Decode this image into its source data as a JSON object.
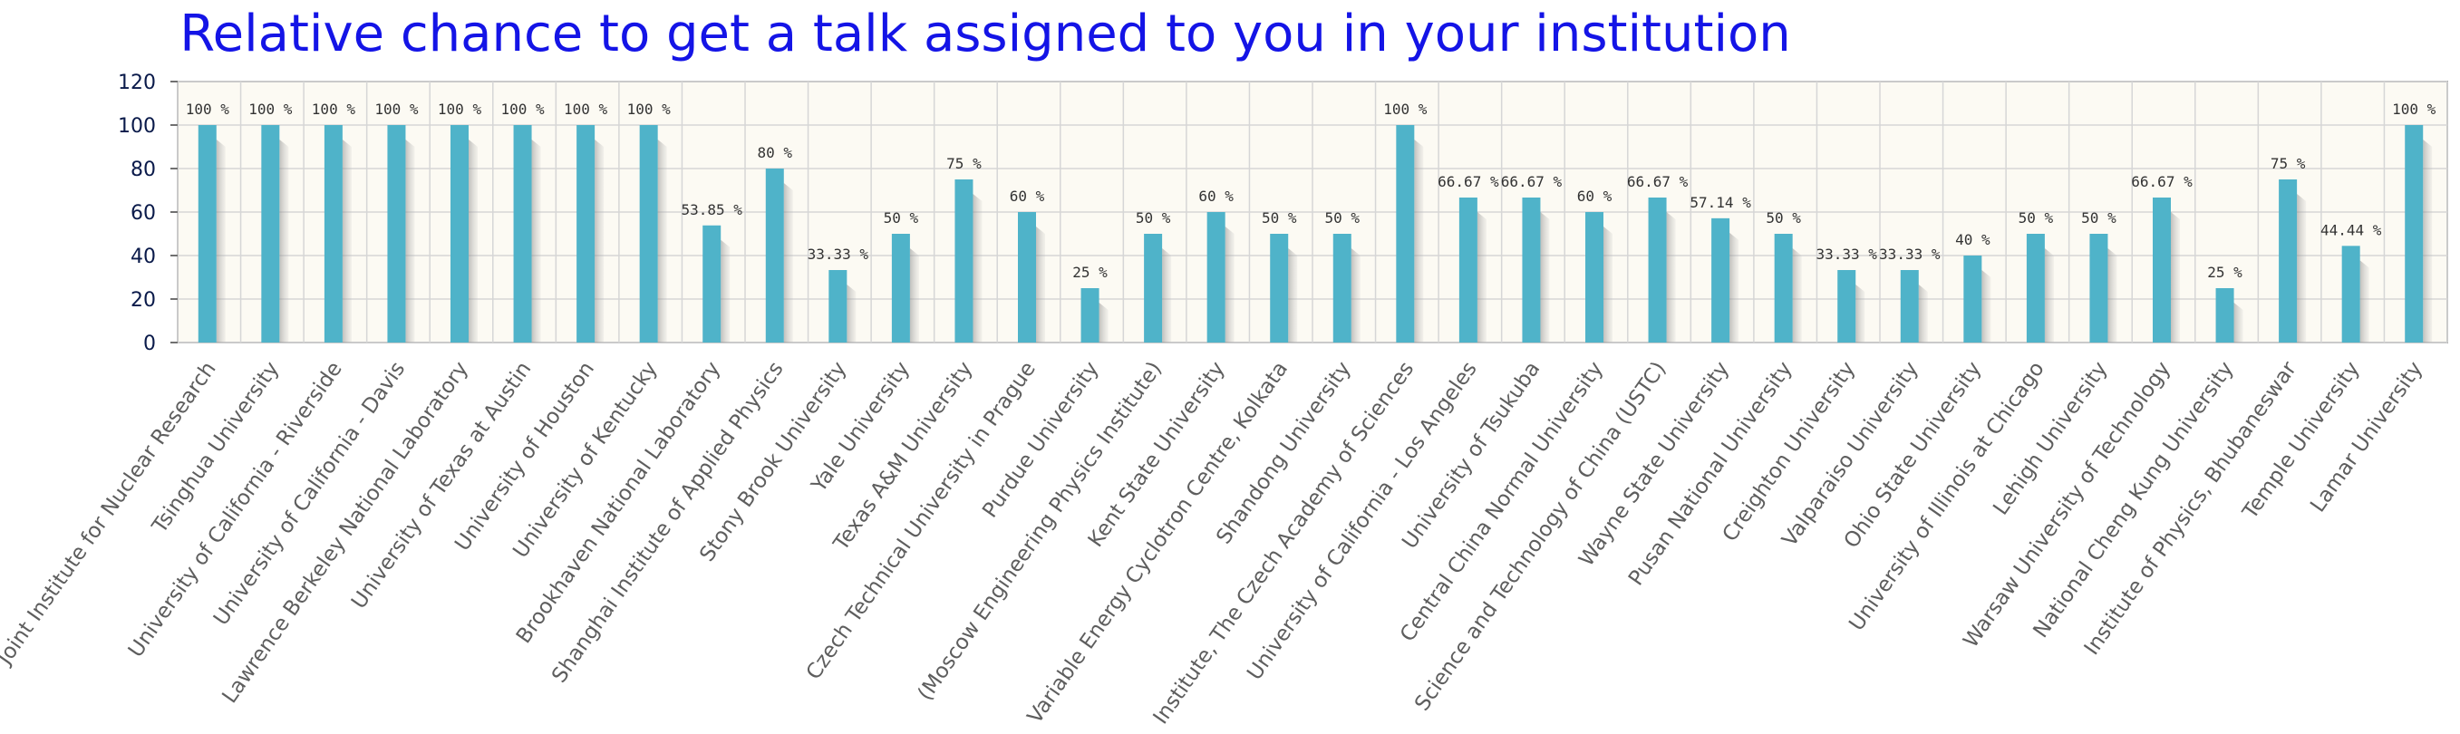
{
  "chart_data": {
    "type": "bar",
    "title": "Relative chance to get a talk assigned to you in your institution",
    "xlabel": "",
    "ylabel": "",
    "ylim": [
      0,
      120
    ],
    "yticks": [
      0,
      20,
      40,
      60,
      80,
      100,
      120
    ],
    "grid": true,
    "bar_color": "#4fb3c9",
    "categories": [
      "Joint Institute for Nuclear Research",
      "Tsinghua University",
      "University of California - Riverside",
      "University of California - Davis",
      "Lawrence Berkeley National Laboratory",
      "University of Texas at Austin",
      "University of Houston",
      "University of Kentucky",
      "Brookhaven National Laboratory",
      "Shanghai Institute of Applied Physics",
      "Stony Brook University",
      "Yale University",
      "Texas A&M University",
      "Czech Technical University in Prague",
      "Purdue University",
      "(Moscow Engineering Physics Institute)",
      "Kent State University",
      "Variable Energy Cyclotron Centre, Kolkata",
      "Shandong University",
      "Institute, The Czech Academy of Sciences",
      "University of California - Los Angeles",
      "University of Tsukuba",
      "Central China Normal University",
      "Science and Technology of China (USTC)",
      "Wayne State University",
      "Pusan National University",
      "Creighton University",
      "Valparaiso University",
      "Ohio State University",
      "University of Illinois at Chicago",
      "Lehigh University",
      "Warsaw University of Technology",
      "National Cheng Kung University",
      "Institute of Physics, Bhubaneswar",
      "Temple University",
      "Lamar University"
    ],
    "values": [
      100,
      100,
      100,
      100,
      100,
      100,
      100,
      100,
      53.85,
      80,
      33.33,
      50,
      75,
      60,
      25,
      50,
      60,
      50,
      50,
      100,
      66.67,
      66.67,
      60,
      66.67,
      57.14,
      50,
      33.33,
      33.33,
      40,
      50,
      50,
      66.67,
      25,
      75,
      44.44,
      100
    ],
    "value_labels": [
      "100 %",
      "100 %",
      "100 %",
      "100 %",
      "100 %",
      "100 %",
      "100 %",
      "100 %",
      "53.85 %",
      "80 %",
      "33.33 %",
      "50 %",
      "75 %",
      "60 %",
      "25 %",
      "50 %",
      "60 %",
      "50 %",
      "50 %",
      "100 %",
      "66.67 %",
      "66.67 %",
      "60 %",
      "66.67 %",
      "57.14 %",
      "50 %",
      "33.33 %",
      "33.33 %",
      "40 %",
      "50 %",
      "50 %",
      "66.67 %",
      "25 %",
      "75 %",
      "44.44 %",
      "100 %"
    ]
  }
}
